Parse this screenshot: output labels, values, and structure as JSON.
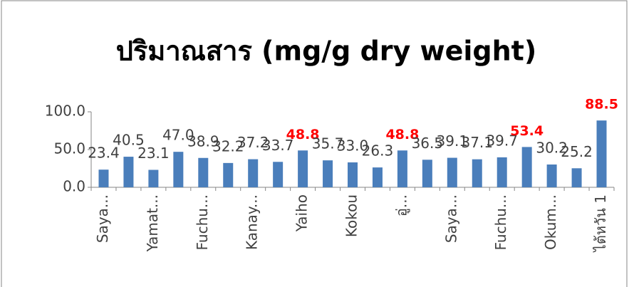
{
  "chart_data": {
    "type": "bar",
    "title": "ปริมาณสาร   (mg/g dry weight)",
    "categories": [
      "Saya...",
      null,
      "Yamat...",
      null,
      "Fuchu...",
      null,
      "Kanay...",
      null,
      "Yaiho",
      null,
      "Kokou",
      null,
      "อู่...",
      null,
      "Saya...",
      null,
      "Fuchu...",
      null,
      "Okum...",
      null,
      "ไต้หวัน 1"
    ],
    "values": [
      23.4,
      40.5,
      23.1,
      47.0,
      38.9,
      32.2,
      37.2,
      33.7,
      48.8,
      35.7,
      33.0,
      26.3,
      48.8,
      36.5,
      39.1,
      37.1,
      39.7,
      53.4,
      30.2,
      25.2,
      88.5
    ],
    "value_labels": [
      "23.4",
      "40.5",
      "23.1",
      "47.0",
      "38.9",
      "32.2",
      "37.2",
      "33.7",
      "48.8",
      "35.7",
      "33.0",
      "26.3",
      "48.8",
      "36.5",
      "39.1",
      "37.1",
      "39.7",
      "53.4",
      "30.2",
      "25.2",
      "88.5"
    ],
    "highlight": [
      8,
      12,
      17,
      20
    ],
    "highlight_color": "#ff0000",
    "color": "#4a7ebb",
    "ylim": [
      0,
      100
    ],
    "yticks": [
      {
        "value": 0,
        "label": "0.0"
      },
      {
        "value": 50,
        "label": "50.0"
      },
      {
        "value": 100,
        "label": "100.0"
      }
    ],
    "grid": false
  }
}
